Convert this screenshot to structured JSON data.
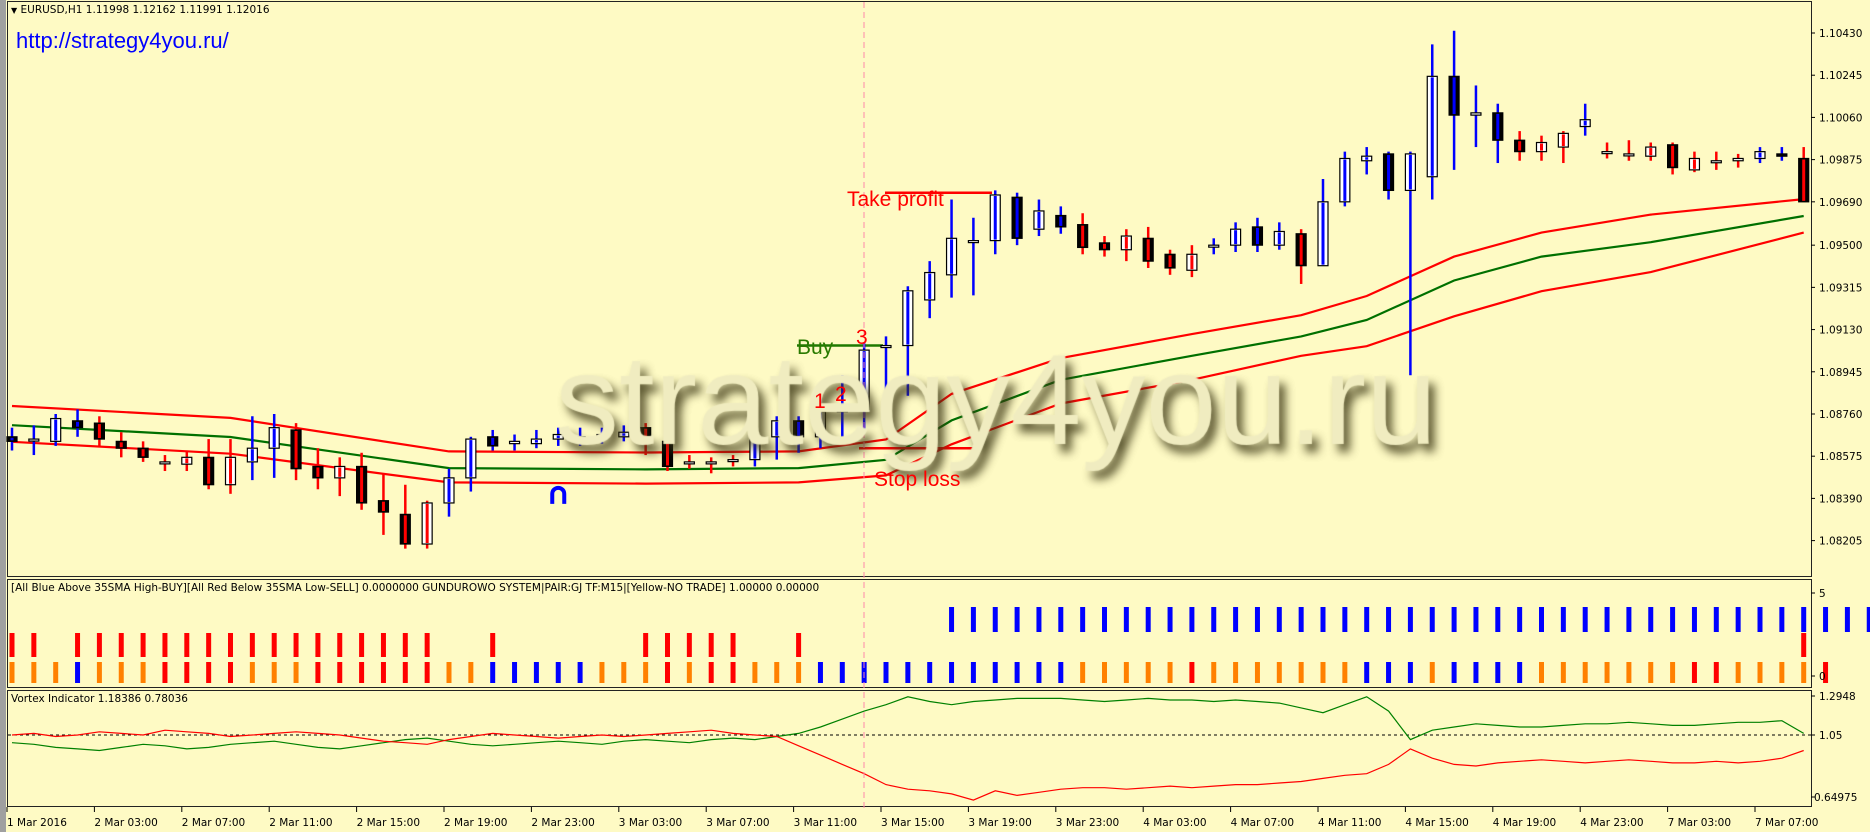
{
  "header": {
    "symbol_line": "EURUSD,H1  1.11998 1.12162 1.11991 1.12016",
    "url": "http://strategy4you.ru/",
    "watermark": "strategy4you.ru"
  },
  "annotations": {
    "buy": "Buy",
    "take_profit": "Take profit",
    "stop_loss": "Stop loss",
    "signal_1": "1",
    "signal_2": "2",
    "signal_3": "3"
  },
  "colors": {
    "background": "#fefac4",
    "up_wick": "#0000ff",
    "down_wick": "#ff0000",
    "band_outer": "#ff0000",
    "band_middle": "#007000",
    "orange": "#ff8000",
    "marker": "#ff88aa"
  },
  "chart_data": [
    {
      "type": "candlestick",
      "title": "EURUSD,H1",
      "y_ticks": [
        "1.10430",
        "1.10245",
        "1.10060",
        "1.09875",
        "1.09690",
        "1.09500",
        "1.09315",
        "1.09130",
        "1.08945",
        "1.08760",
        "1.08575",
        "1.08390",
        "1.08205"
      ],
      "ylim": [
        1.08205,
        1.1043
      ],
      "x_ticks": [
        "1 Mar 2016",
        "2 Mar 03:00",
        "2 Mar 07:00",
        "2 Mar 11:00",
        "2 Mar 15:00",
        "2 Mar 19:00",
        "2 Mar 23:00",
        "3 Mar 03:00",
        "3 Mar 07:00",
        "3 Mar 11:00",
        "3 Mar 15:00",
        "3 Mar 19:00",
        "3 Mar 23:00",
        "4 Mar 03:00",
        "4 Mar 07:00",
        "4 Mar 11:00",
        "4 Mar 15:00",
        "4 Mar 19:00",
        "4 Mar 23:00",
        "7 Mar 03:00",
        "7 Mar 07:00"
      ],
      "candles_ohlc_wick": [
        [
          1.0866,
          1.087,
          1.086,
          1.0864,
          "b"
        ],
        [
          1.0865,
          1.0871,
          1.0858,
          1.0865,
          "b"
        ],
        [
          1.0864,
          1.0876,
          1.0862,
          1.0874,
          "b"
        ],
        [
          1.0873,
          1.0878,
          1.0866,
          1.087,
          "b"
        ],
        [
          1.0872,
          1.0875,
          1.0862,
          1.0865,
          "r"
        ],
        [
          1.0864,
          1.0868,
          1.0857,
          1.0861,
          "r"
        ],
        [
          1.0861,
          1.0864,
          1.0855,
          1.0857,
          "r"
        ],
        [
          1.0855,
          1.0858,
          1.0851,
          1.0855,
          "r"
        ],
        [
          1.0854,
          1.086,
          1.0851,
          1.0857,
          "r"
        ],
        [
          1.0857,
          1.0865,
          1.0843,
          1.0845,
          "r"
        ],
        [
          1.0845,
          1.0865,
          1.0841,
          1.0857,
          "r"
        ],
        [
          1.0855,
          1.0875,
          1.0847,
          1.0861,
          "b"
        ],
        [
          1.0861,
          1.0876,
          1.0848,
          1.087,
          "b"
        ],
        [
          1.0869,
          1.0872,
          1.0847,
          1.0852,
          "r"
        ],
        [
          1.0853,
          1.0861,
          1.0843,
          1.0848,
          "r"
        ],
        [
          1.0848,
          1.0857,
          1.084,
          1.0853,
          "r"
        ],
        [
          1.0853,
          1.0859,
          1.0834,
          1.0837,
          "r"
        ],
        [
          1.0838,
          1.085,
          1.0823,
          1.0833,
          "r"
        ],
        [
          1.0832,
          1.0845,
          1.0817,
          1.0819,
          "r"
        ],
        [
          1.0819,
          1.0838,
          1.0817,
          1.0837,
          "r"
        ],
        [
          1.0837,
          1.0852,
          1.0831,
          1.0848,
          "b"
        ],
        [
          1.0848,
          1.0866,
          1.0842,
          1.0865,
          "b"
        ],
        [
          1.0866,
          1.0869,
          1.086,
          1.0862,
          "b"
        ],
        [
          1.0863,
          1.0867,
          1.086,
          1.0864,
          "b"
        ],
        [
          1.0863,
          1.0869,
          1.0861,
          1.0865,
          "b"
        ],
        [
          1.0865,
          1.087,
          1.0862,
          1.0867,
          "b"
        ],
        [
          1.0866,
          1.087,
          1.0862,
          1.0866,
          "b"
        ],
        [
          1.0867,
          1.087,
          1.0863,
          1.0867,
          "b"
        ],
        [
          1.0866,
          1.0871,
          1.0864,
          1.0868,
          "b"
        ],
        [
          1.087,
          1.0872,
          1.0858,
          1.0865,
          "r"
        ],
        [
          1.0864,
          1.0866,
          1.0851,
          1.0853,
          "r"
        ],
        [
          1.0855,
          1.0858,
          1.0852,
          1.0855,
          "r"
        ],
        [
          1.0855,
          1.0857,
          1.085,
          1.0855,
          "r"
        ],
        [
          1.0856,
          1.0858,
          1.0853,
          1.0856,
          "r"
        ],
        [
          1.0856,
          1.0869,
          1.0853,
          1.0866,
          "b"
        ],
        [
          1.0866,
          1.0875,
          1.0856,
          1.0873,
          "b"
        ],
        [
          1.0873,
          1.0875,
          1.0859,
          1.0866,
          "b"
        ],
        [
          1.0866,
          1.0885,
          1.0861,
          1.0877,
          "b"
        ],
        [
          1.0877,
          1.0893,
          1.0866,
          1.0879,
          "b"
        ],
        [
          1.0878,
          1.0907,
          1.0868,
          1.0904,
          "b"
        ],
        [
          1.0906,
          1.091,
          1.0882,
          1.0906,
          "b"
        ],
        [
          1.0906,
          1.0932,
          1.0884,
          1.093,
          "b"
        ],
        [
          1.0926,
          1.0943,
          1.0918,
          1.0938,
          "b"
        ],
        [
          1.0937,
          1.097,
          1.0927,
          1.0953,
          "b"
        ],
        [
          1.0952,
          1.0962,
          1.0928,
          1.0952,
          "b"
        ],
        [
          1.0952,
          1.0974,
          1.0946,
          1.0972,
          "b"
        ],
        [
          1.0971,
          1.0973,
          1.095,
          1.0953,
          "b"
        ],
        [
          1.0957,
          1.097,
          1.0954,
          1.0965,
          "b"
        ],
        [
          1.0963,
          1.0967,
          1.0955,
          1.0958,
          "b"
        ],
        [
          1.0959,
          1.0964,
          1.0946,
          1.0949,
          "r"
        ],
        [
          1.0951,
          1.0954,
          1.0945,
          1.0948,
          "r"
        ],
        [
          1.0948,
          1.0957,
          1.0943,
          1.0954,
          "r"
        ],
        [
          1.0953,
          1.0958,
          1.094,
          1.0943,
          "r"
        ],
        [
          1.0946,
          1.0948,
          1.0937,
          1.094,
          "r"
        ],
        [
          1.0939,
          1.095,
          1.0936,
          1.0946,
          "r"
        ],
        [
          1.095,
          1.0953,
          1.0946,
          1.095,
          "b"
        ],
        [
          1.095,
          1.096,
          1.0947,
          1.0957,
          "b"
        ],
        [
          1.0958,
          1.0962,
          1.0947,
          1.095,
          "b"
        ],
        [
          1.095,
          1.096,
          1.0948,
          1.0956,
          "b"
        ],
        [
          1.0955,
          1.0957,
          1.0933,
          1.0941,
          "r"
        ],
        [
          1.0941,
          1.0979,
          1.0941,
          1.0969,
          "b"
        ],
        [
          1.0969,
          1.0991,
          1.0967,
          1.0988,
          "b"
        ],
        [
          1.0987,
          1.0993,
          1.0981,
          1.0989,
          "b"
        ],
        [
          1.099,
          1.0991,
          1.097,
          1.0974,
          "b"
        ],
        [
          1.0974,
          1.0991,
          1.0893,
          1.099,
          "b"
        ],
        [
          1.098,
          1.1038,
          1.097,
          1.1024,
          "b"
        ],
        [
          1.1024,
          1.1044,
          1.0983,
          1.1007,
          "b"
        ],
        [
          1.1007,
          1.102,
          1.0993,
          1.1008,
          "b"
        ],
        [
          1.1008,
          1.1012,
          1.0986,
          1.0996,
          "b"
        ],
        [
          1.0996,
          1.1,
          1.0987,
          1.0991,
          "r"
        ],
        [
          1.0991,
          1.0998,
          1.0987,
          1.0995,
          "r"
        ],
        [
          1.0993,
          1.1,
          1.0986,
          1.0999,
          "r"
        ],
        [
          1.1002,
          1.1012,
          1.0998,
          1.1005,
          "b"
        ],
        [
          1.0991,
          1.0995,
          1.0988,
          1.0991,
          "r"
        ],
        [
          1.099,
          1.0996,
          1.0987,
          1.099,
          "r"
        ],
        [
          1.0989,
          1.0995,
          1.0987,
          1.0993,
          "r"
        ],
        [
          1.0994,
          1.0995,
          1.0981,
          1.0984,
          "r"
        ],
        [
          1.0983,
          1.0991,
          1.0982,
          1.0988,
          "r"
        ],
        [
          1.0987,
          1.0991,
          1.0983,
          1.0987,
          "r"
        ],
        [
          1.0987,
          1.099,
          1.0984,
          1.0988,
          "r"
        ],
        [
          1.0988,
          1.0993,
          1.0986,
          1.0991,
          "b"
        ],
        [
          1.099,
          1.0993,
          1.0987,
          1.0989,
          "b"
        ],
        [
          1.0988,
          1.0993,
          1.0969,
          1.0969,
          "r"
        ]
      ],
      "ma_bands": {
        "bars": [
          0,
          10,
          20,
          29,
          36,
          40,
          43,
          48,
          54,
          59,
          62,
          66,
          70,
          75,
          82
        ],
        "upper": [
          1.08795,
          1.08743,
          1.08596,
          1.08591,
          1.08596,
          1.08648,
          1.08848,
          1.09005,
          1.0911,
          1.09193,
          1.09277,
          1.0945,
          1.09555,
          1.09634,
          1.09702
        ],
        "middle": [
          1.08711,
          1.08659,
          1.08523,
          1.08517,
          1.08523,
          1.08559,
          1.08732,
          1.0891,
          1.09015,
          1.091,
          1.09172,
          1.09345,
          1.0945,
          1.09513,
          1.09628
        ],
        "lower": [
          1.08638,
          1.08586,
          1.0846,
          1.08455,
          1.0846,
          1.08491,
          1.08627,
          1.08806,
          1.0891,
          1.09015,
          1.09057,
          1.09188,
          1.09298,
          1.09382,
          1.09555
        ]
      },
      "levels": {
        "buy": 1.0906,
        "take_profit": 1.0973,
        "stop_loss": 1.0861
      },
      "signal_bar": 39,
      "arrow_marker": {
        "bar": 25,
        "price": 1.0841
      }
    },
    {
      "type": "histogram",
      "title": "[All Blue Above 35SMA High-BUY][All Red Below 35SMA Low-SELL] 0.0000000  GUNDUROWO SYSTEM|PAIR:GJ TF:M15|[Yellow-NO TRADE] 1.00000 0.00000",
      "y_ticks": [
        "5",
        "0"
      ],
      "palette": {
        "b": "#0000ff",
        "r": "#ff0000",
        "o": "#ff8000"
      },
      "rows": [
        "-------------------------------------------bbbbbbbbbbbbbbbbbbbbbbbbbbbbbbbbbbbbbbbbbbbb-",
        "rr-rrrrrrrrrrrrrrrrr--r------rrrrr--r---------------------------------------------r",
        "ooobooorrrrooorrrrrroobbbbbooororrooobbbbbbbbbbbbooooorooooooobbbobbbbooooooorroooor"
      ]
    },
    {
      "type": "line",
      "title": "Vortex Indicator 1.18386 0.78036",
      "y_ticks": [
        "1.2948",
        "1.05",
        "0.64975"
      ],
      "ylim": [
        0.64975,
        1.2948
      ],
      "level": 1.05,
      "series": [
        {
          "color": "#008000",
          "values": [
            1.0,
            0.99,
            0.97,
            0.96,
            0.95,
            0.97,
            0.99,
            0.98,
            0.96,
            0.97,
            0.99,
            1.0,
            1.01,
            0.99,
            0.97,
            0.96,
            0.98,
            1.0,
            1.02,
            1.03,
            1.01,
            0.99,
            0.98,
            0.99,
            1.0,
            1.01,
            1.0,
            0.99,
            1.01,
            1.02,
            1.01,
            1.0,
            1.02,
            1.03,
            1.02,
            1.04,
            1.06,
            1.1,
            1.15,
            1.2,
            1.24,
            1.29,
            1.26,
            1.24,
            1.26,
            1.27,
            1.28,
            1.28,
            1.28,
            1.27,
            1.26,
            1.27,
            1.28,
            1.27,
            1.27,
            1.26,
            1.27,
            1.26,
            1.25,
            1.22,
            1.19,
            1.24,
            1.29,
            1.2,
            1.02,
            1.08,
            1.1,
            1.12,
            1.11,
            1.1,
            1.1,
            1.11,
            1.12,
            1.12,
            1.13,
            1.12,
            1.11,
            1.11,
            1.12,
            1.13,
            1.13,
            1.14,
            1.06
          ]
        },
        {
          "color": "#ff0000",
          "values": [
            1.05,
            1.06,
            1.04,
            1.05,
            1.07,
            1.06,
            1.05,
            1.08,
            1.07,
            1.06,
            1.04,
            1.05,
            1.06,
            1.07,
            1.06,
            1.05,
            1.03,
            1.01,
            1.0,
            0.99,
            1.02,
            1.04,
            1.06,
            1.05,
            1.04,
            1.03,
            1.04,
            1.05,
            1.04,
            1.05,
            1.06,
            1.07,
            1.08,
            1.06,
            1.05,
            1.04,
            0.98,
            0.92,
            0.86,
            0.8,
            0.73,
            0.7,
            0.69,
            0.67,
            0.63,
            0.69,
            0.66,
            0.68,
            0.7,
            0.71,
            0.71,
            0.7,
            0.71,
            0.72,
            0.71,
            0.72,
            0.73,
            0.73,
            0.74,
            0.75,
            0.77,
            0.79,
            0.8,
            0.86,
            0.96,
            0.9,
            0.86,
            0.85,
            0.87,
            0.88,
            0.89,
            0.88,
            0.87,
            0.88,
            0.89,
            0.88,
            0.87,
            0.87,
            0.88,
            0.87,
            0.88,
            0.9,
            0.95
          ]
        }
      ]
    }
  ]
}
